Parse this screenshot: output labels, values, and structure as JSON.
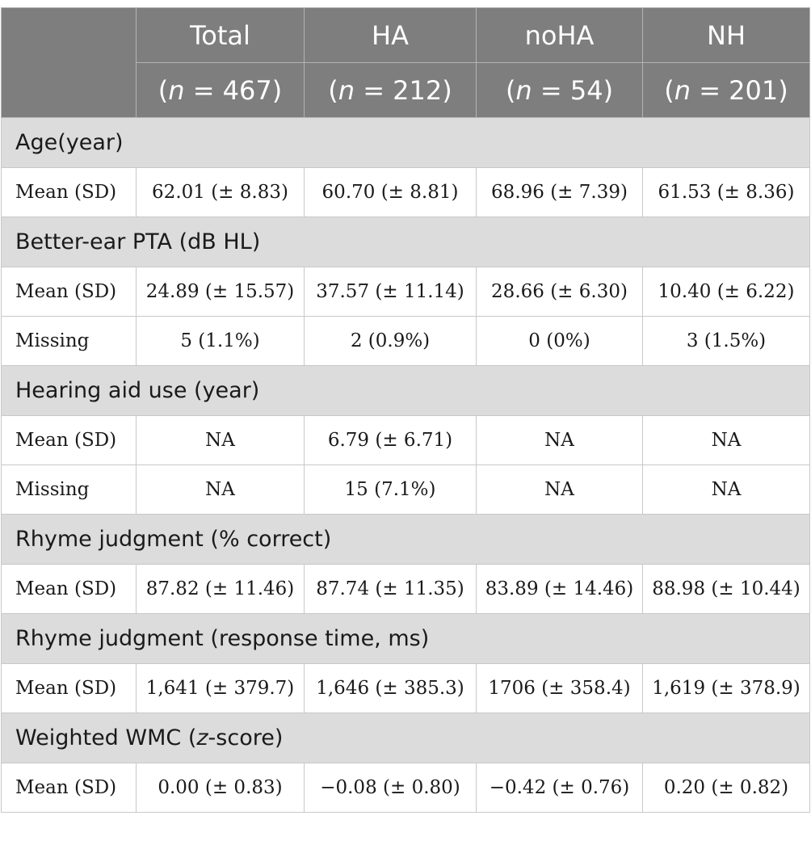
{
  "header": {
    "columns": [
      {
        "name": "Total",
        "n_prefix": "(",
        "n_var": "n",
        "n_suffix": " = 467)"
      },
      {
        "name": "HA",
        "n_prefix": "(",
        "n_var": "n",
        "n_suffix": " = 212)"
      },
      {
        "name": "noHA",
        "n_prefix": "(",
        "n_var": "n",
        "n_suffix": " = 54)"
      },
      {
        "name": "NH",
        "n_prefix": "(",
        "n_var": "n",
        "n_suffix": " = 201)"
      }
    ]
  },
  "sections": [
    {
      "title": "Age(year)",
      "rows": [
        {
          "label": "Mean (SD)",
          "values": [
            "62.01 (± 8.83)",
            "60.70 (± 8.81)",
            "68.96 (± 7.39)",
            "61.53 (± 8.36)"
          ]
        }
      ]
    },
    {
      "title": "Better-ear PTA (dB HL)",
      "rows": [
        {
          "label": "Mean (SD)",
          "values": [
            "24.89 (± 15.57)",
            "37.57 (± 11.14)",
            "28.66 (± 6.30)",
            "10.40 (± 6.22)"
          ]
        },
        {
          "label": "Missing",
          "values": [
            "5 (1.1%)",
            "2 (0.9%)",
            "0 (0%)",
            "3 (1.5%)"
          ]
        }
      ]
    },
    {
      "title": "Hearing aid use (year)",
      "rows": [
        {
          "label": "Mean (SD)",
          "values": [
            "NA",
            "6.79 (± 6.71)",
            "NA",
            "NA"
          ]
        },
        {
          "label": "Missing",
          "values": [
            "NA",
            "15 (7.1%)",
            "NA",
            "NA"
          ]
        }
      ]
    },
    {
      "title": "Rhyme judgment (% correct)",
      "rows": [
        {
          "label": "Mean (SD)",
          "values": [
            "87.82 (± 11.46)",
            "87.74 (± 11.35)",
            "83.89 (± 14.46)",
            "88.98 (± 10.44)"
          ]
        }
      ]
    },
    {
      "title": "Rhyme judgment (response time, ms)",
      "rows": [
        {
          "label": "Mean (SD)",
          "values": [
            "1,641 (± 379.7)",
            "1,646 (± 385.3)",
            "1706 (± 358.4)",
            "1,619 (± 378.9)"
          ]
        }
      ]
    },
    {
      "title_prefix": "Weighted WMC (",
      "title_italic": "z",
      "title_suffix": "-score)",
      "rows": [
        {
          "label": "Mean (SD)",
          "values": [
            "0.00 (± 0.83)",
            "−0.08 (± 0.80)",
            "−0.42 (± 0.76)",
            "0.20 (± 0.82)"
          ]
        }
      ]
    }
  ]
}
